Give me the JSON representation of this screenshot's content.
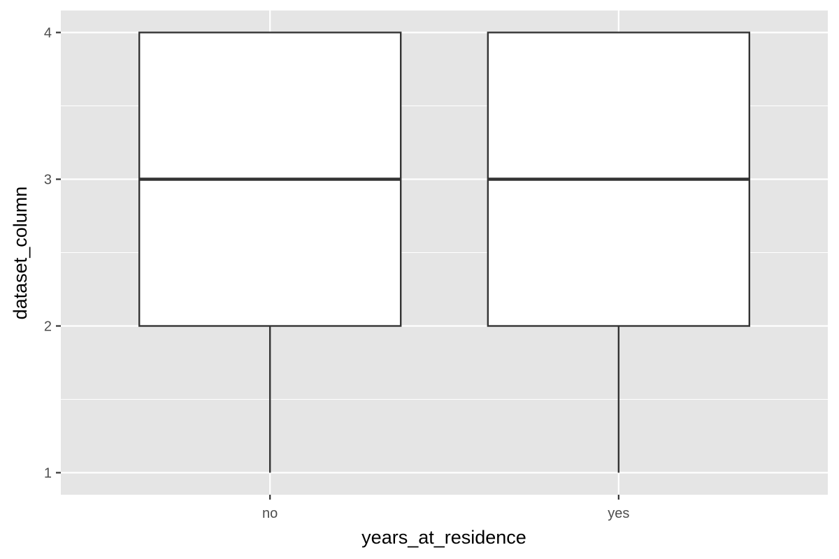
{
  "chart_data": {
    "type": "box",
    "xlabel": "years_at_residence",
    "ylabel": "dataset_column",
    "categories": [
      "no",
      "yes"
    ],
    "ylim": [
      0.85,
      4.15
    ],
    "y_ticks": [
      1,
      2,
      3,
      4
    ],
    "y_tick_labels": [
      "1",
      "2",
      "3",
      "4"
    ],
    "grid": true,
    "boxes": [
      {
        "category": "no",
        "min": 1,
        "q1": 2,
        "median": 3,
        "q3": 4,
        "max": 4
      },
      {
        "category": "yes",
        "min": 1,
        "q1": 2,
        "median": 3,
        "q3": 4,
        "max": 4
      }
    ],
    "colors": {
      "panel": "#e5e5e5",
      "grid": "#ffffff",
      "box_fill": "#ffffff",
      "box_stroke": "#333333"
    }
  }
}
